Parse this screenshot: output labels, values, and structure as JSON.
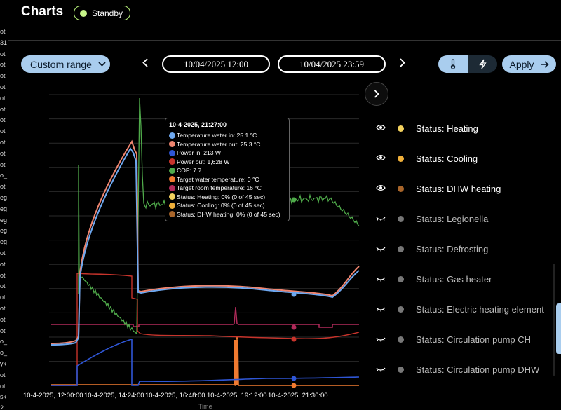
{
  "header": {
    "title": "Charts",
    "status_badge": "Standby"
  },
  "left_strip": [
    "ot",
    "31",
    "ot",
    "ot",
    "ot",
    "ot",
    "ot",
    "ot",
    "ot",
    "ot",
    "ot",
    "ot",
    "ot",
    "o_",
    "ot",
    "eg",
    "eg",
    "eg",
    "eg",
    "eg",
    "ot",
    "ot",
    "ot",
    "ot",
    "ot",
    "ot",
    "ot",
    "ot",
    "o_",
    "o_",
    "yk",
    "ot",
    "ot",
    "sk",
    "2"
  ],
  "toolbar": {
    "range_label": "Custom range",
    "start_date": "10/04/2025 12:00",
    "end_date": "10/04/2025 23:59",
    "apply_label": "Apply",
    "prev_icon": "chevron-left-icon",
    "next_icon": "chevron-right-icon",
    "temp_icon": "thermometer-icon",
    "power_icon": "bolt-icon"
  },
  "tooltip": {
    "title": "10-4-2025, 21:27:00",
    "rows": [
      {
        "label": "Temperature water in: 25.1 °C",
        "color": "#6ea8f0"
      },
      {
        "label": "Temperature water out: 25.3 °C",
        "color": "#f08670"
      },
      {
        "label": "Power in: 213 W",
        "color": "#2f56d6"
      },
      {
        "label": "Power out: 1,628 W",
        "color": "#c8342c"
      },
      {
        "label": "COP: 7.7",
        "color": "#4faa4a"
      },
      {
        "label": "Target water temperature: 0 °C",
        "color": "#f07a30"
      },
      {
        "label": "Target room temperature: 16 °C",
        "color": "#b12a5a"
      },
      {
        "label": "Status: Heating: 0% (0 of 45 sec)",
        "color": "#f4d25e"
      },
      {
        "label": "Status: Cooling: 0% (0 of 45 sec)",
        "color": "#f0b03a"
      },
      {
        "label": "Status: DHW heating: 0% (0 of 45 sec)",
        "color": "#a8652a"
      }
    ]
  },
  "legend": [
    {
      "label": "Status: Heating",
      "visible": true,
      "color": "#f4d25e"
    },
    {
      "label": "Status: Cooling",
      "visible": true,
      "color": "#f0b03a"
    },
    {
      "label": "Status: DHW heating",
      "visible": true,
      "color": "#a8652a"
    },
    {
      "label": "Status: Legionella",
      "visible": false,
      "color": "#777777"
    },
    {
      "label": "Status: Defrosting",
      "visible": false,
      "color": "#777777"
    },
    {
      "label": "Status: Gas heater",
      "visible": false,
      "color": "#777777"
    },
    {
      "label": "Status: Electric heating element",
      "visible": false,
      "color": "#777777"
    },
    {
      "label": "Status: Circulation pump CH",
      "visible": false,
      "color": "#777777"
    },
    {
      "label": "Status: Circulation pump DHW",
      "visible": false,
      "color": "#777777"
    }
  ],
  "chart_data": {
    "type": "line",
    "xlabel": "Time",
    "x_ticks": [
      "10-4-2025, 12:00:00",
      "10-4-2025, 14:24:00",
      "10-4-2025, 16:48:00",
      "10-4-2025, 19:12:00",
      "10-4-2025, 21:36:00"
    ],
    "series": [
      {
        "name": "Temperature water in",
        "color": "#6ea8f0"
      },
      {
        "name": "Temperature water out",
        "color": "#f08670"
      },
      {
        "name": "Power in",
        "color": "#2f56d6"
      },
      {
        "name": "Power out",
        "color": "#c8342c"
      },
      {
        "name": "COP",
        "color": "#4faa4a"
      },
      {
        "name": "Target water temperature",
        "color": "#f07a30"
      },
      {
        "name": "Target room temperature",
        "color": "#b12a5a"
      }
    ]
  }
}
